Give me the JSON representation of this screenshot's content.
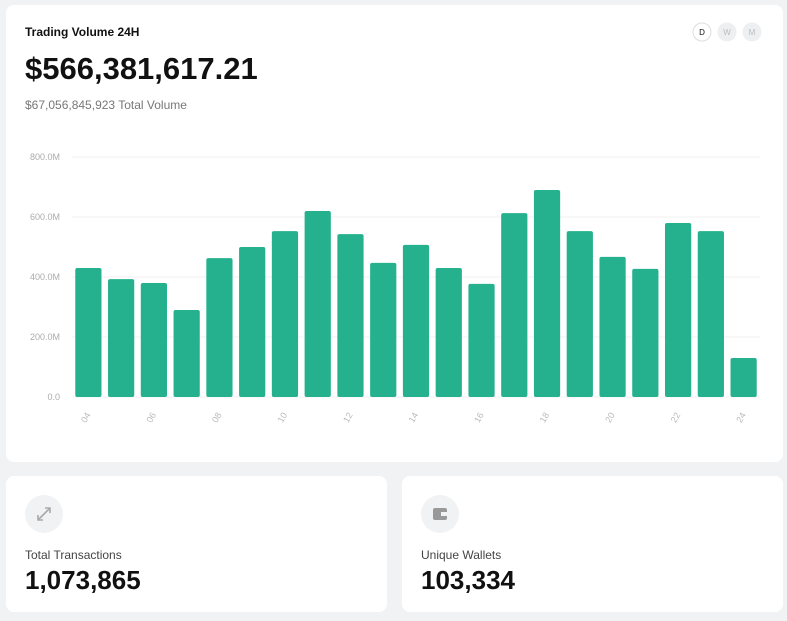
{
  "periods": [
    "D",
    "W",
    "M"
  ],
  "headline": "$566,381,617.21",
  "subheadline": "$67,056,845,923 Total Volume",
  "chart_data": {
    "type": "bar",
    "title": "Trading Volume 24H",
    "categories": [
      "04",
      null,
      "06",
      null,
      "08",
      null,
      "10",
      null,
      "12",
      null,
      "14",
      null,
      "16",
      null,
      "18",
      null,
      "20",
      null,
      "22",
      null,
      "24"
    ],
    "values": [
      430,
      393,
      380,
      290,
      463,
      500,
      553,
      620,
      543,
      447,
      507,
      430,
      377,
      613,
      690,
      553,
      467,
      427,
      580,
      553,
      130
    ],
    "color": "#25b08e",
    "ylim": [
      0,
      800
    ],
    "yticks": [
      {
        "value": 0,
        "label": "0.0"
      },
      {
        "value": 200,
        "label": "200.0M"
      },
      {
        "value": 400,
        "label": "400.0M"
      },
      {
        "value": 600,
        "label": "600.0M"
      },
      {
        "value": 800,
        "label": "800.0M"
      }
    ],
    "grid": true
  },
  "stats": [
    {
      "label": "Total Transactions",
      "value": "1,073,865"
    },
    {
      "label": "Unique Wallets",
      "value": "103,334"
    }
  ]
}
